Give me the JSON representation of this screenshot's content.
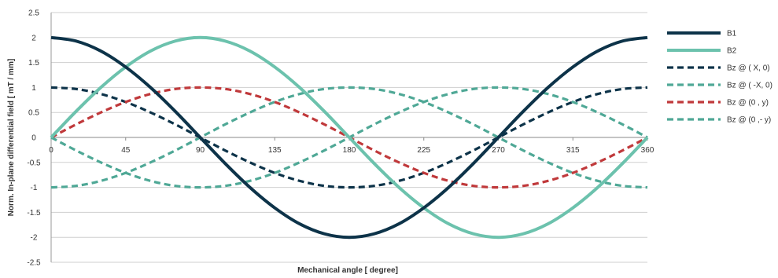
{
  "chart_data": {
    "type": "line",
    "xlabel": "Mechanical angle [ degree]",
    "ylabel": "Norm. In-plane differential field [ mT / mm]",
    "xlim": [
      0,
      360
    ],
    "ylim": [
      -2.5,
      2.5
    ],
    "xticks": [
      "0",
      "45",
      "90",
      "135",
      "180",
      "225",
      "270",
      "315",
      "360"
    ],
    "yticks": [
      "2.5",
      "2",
      "1.5",
      "1",
      "0.5",
      "0",
      "-0.5",
      "-1",
      "-1.5",
      "-2",
      "-2.5"
    ],
    "grid": "horizontal",
    "legend_position": "right",
    "x": [
      0,
      15,
      30,
      45,
      60,
      75,
      90,
      105,
      120,
      135,
      150,
      165,
      180,
      195,
      210,
      225,
      240,
      255,
      270,
      285,
      300,
      315,
      330,
      345,
      360
    ],
    "series": [
      {
        "name": "B1",
        "color": "#0d3349",
        "style": "solid",
        "values": [
          2,
          1.93,
          1.73,
          1.41,
          1,
          0.52,
          0,
          -0.52,
          -1,
          -1.41,
          -1.73,
          -1.93,
          -2,
          -1.93,
          -1.73,
          -1.41,
          -1,
          -0.52,
          0,
          0.52,
          1,
          1.41,
          1.73,
          1.93,
          2
        ]
      },
      {
        "name": "B2",
        "color": "#6cc2ad",
        "style": "solid",
        "values": [
          0,
          0.52,
          1,
          1.41,
          1.73,
          1.93,
          2,
          1.93,
          1.73,
          1.41,
          1,
          0.52,
          0,
          -0.52,
          -1,
          -1.41,
          -1.73,
          -1.93,
          -2,
          -1.93,
          -1.73,
          -1.41,
          -1,
          -0.52,
          0
        ]
      },
      {
        "name": "Bz @ ( X, 0)",
        "color": "#0d3349",
        "style": "dashed",
        "values": [
          1,
          0.97,
          0.87,
          0.71,
          0.5,
          0.26,
          0,
          -0.26,
          -0.5,
          -0.71,
          -0.87,
          -0.97,
          -1,
          -0.97,
          -0.87,
          -0.71,
          -0.5,
          -0.26,
          0,
          0.26,
          0.5,
          0.71,
          0.87,
          0.97,
          1
        ]
      },
      {
        "name": "Bz @ ( -X, 0)",
        "color": "#4fa896",
        "style": "dashed",
        "values": [
          -1,
          -0.97,
          -0.87,
          -0.71,
          -0.5,
          -0.26,
          0,
          0.26,
          0.5,
          0.71,
          0.87,
          0.97,
          1,
          0.97,
          0.87,
          0.71,
          0.5,
          0.26,
          0,
          -0.26,
          -0.5,
          -0.71,
          -0.87,
          -0.97,
          -1
        ]
      },
      {
        "name": "Bz @ (0 , y)",
        "color": "#c0393b",
        "style": "dashed",
        "values": [
          0,
          0.26,
          0.5,
          0.71,
          0.87,
          0.97,
          1,
          0.97,
          0.87,
          0.71,
          0.5,
          0.26,
          0,
          -0.26,
          -0.5,
          -0.71,
          -0.87,
          -0.97,
          -1,
          -0.97,
          -0.87,
          -0.71,
          -0.5,
          -0.26,
          0
        ]
      },
      {
        "name": "Bz @ (0 ,- y)",
        "color": "#4fa896",
        "style": "dashed",
        "values": [
          0,
          -0.26,
          -0.5,
          -0.71,
          -0.87,
          -0.97,
          -1,
          -0.97,
          -0.87,
          -0.71,
          -0.5,
          -0.26,
          0,
          0.26,
          0.5,
          0.71,
          0.87,
          0.97,
          1,
          0.97,
          0.87,
          0.71,
          0.5,
          0.26,
          0
        ]
      }
    ]
  }
}
